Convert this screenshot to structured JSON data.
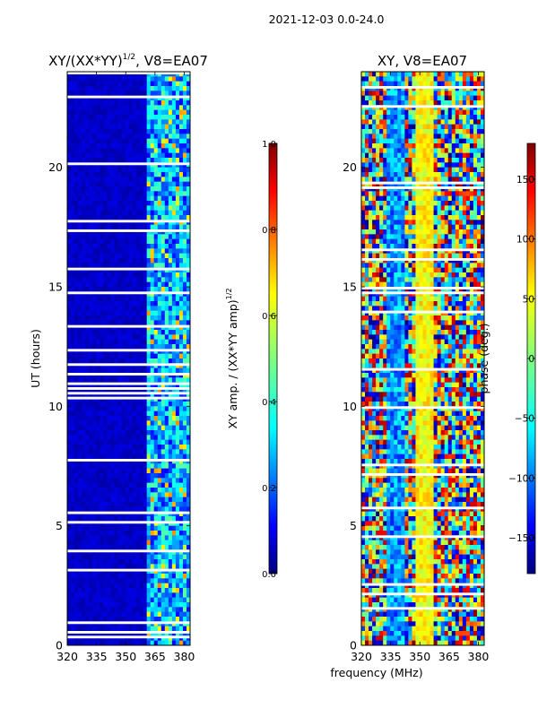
{
  "suptitle": "2021-12-03 0.0-24.0",
  "xlabel_shared": "frequency (MHz)",
  "chart_data": [
    {
      "type": "heatmap",
      "title_main": "XY/(XX*YY)",
      "title_sup": "1/2",
      "title_tail": ", V8=EA07",
      "xlabel": "frequency (MHz)",
      "ylabel": "UT (hours)",
      "xlim": [
        320,
        383
      ],
      "ylim": [
        0,
        24
      ],
      "xticks": [
        320,
        335,
        350,
        365,
        380
      ],
      "yticks": [
        0,
        5,
        10,
        15,
        20
      ],
      "colormap": "jet",
      "colorbar": {
        "label_main": "XY amp. / (XX*YY amp)",
        "label_sup": "1/2",
        "range": [
          0.0,
          1.0
        ],
        "ticks": [
          "0.0",
          "0.2",
          "0.4",
          "0.6",
          "0.8",
          "1.0"
        ],
        "tick_values": [
          0.0,
          0.2,
          0.4,
          0.6,
          0.8,
          1.0
        ]
      }
    },
    {
      "type": "heatmap",
      "title": "XY, V8=EA07",
      "xlabel": "frequency (MHz)",
      "ylabel": "",
      "xlim": [
        320,
        383
      ],
      "ylim": [
        0,
        24
      ],
      "xticks": [
        320,
        335,
        350,
        365,
        380
      ],
      "yticks": [
        0,
        5,
        10,
        15,
        20
      ],
      "colormap": "jet",
      "colorbar": {
        "label": "phase (deg.)",
        "range": [
          -180,
          180
        ],
        "ticks": [
          "150",
          "100",
          "50",
          "0",
          "−50",
          "−100",
          "−150"
        ],
        "tick_values": [
          150,
          100,
          50,
          0,
          -50,
          -100,
          -150
        ]
      }
    }
  ],
  "colors": {
    "jet_0": "#00007f",
    "jet_1": "#0000ff",
    "jet_2": "#007fff",
    "jet_3": "#00ffff",
    "jet_4": "#7fff7f",
    "jet_5": "#ffff00",
    "jet_6": "#ff7f00",
    "jet_7": "#ff0000",
    "jet_8": "#7f0000"
  }
}
